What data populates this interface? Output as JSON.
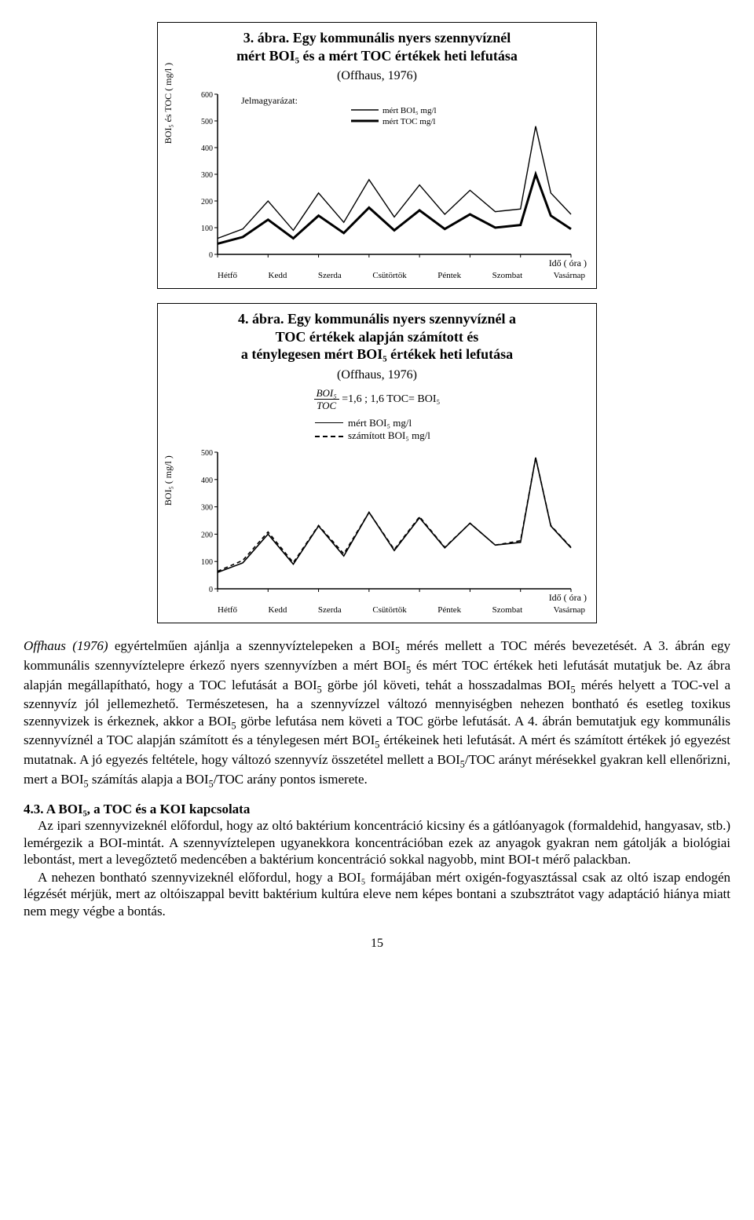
{
  "figure3": {
    "caption_num": "3. ábra.",
    "caption_line1": "Egy kommunális nyers szennyvíznél",
    "caption_line2": "mért BOI₅ és a mért TOC értékek heti lefutása",
    "caption_sub": "(Offhaus, 1976)",
    "legend_title": "Jelmagyarázat:",
    "legend_a": "mért BOI₅ mg/l",
    "legend_b": "mért TOC mg/l",
    "ylabel": "BOI₅ és TOC ( mg/l )",
    "xright": "Idő ( óra )",
    "ylim": [
      0,
      600
    ],
    "yticks": [
      0,
      100,
      200,
      300,
      400,
      500,
      600
    ],
    "xlabels": [
      "Hétfő",
      "Kedd",
      "Szerda",
      "Csütörtök",
      "Péntek",
      "Szombat",
      "Vasárnap"
    ],
    "plot_bg": "#ffffff",
    "axis_color": "#000000",
    "series_boi": {
      "color": "#000000",
      "width": 1.4,
      "x": [
        0,
        0.5,
        1,
        1.5,
        2,
        2.5,
        3,
        3.5,
        4,
        4.5,
        5,
        5.5,
        6,
        6.3,
        6.6,
        7
      ],
      "y": [
        60,
        95,
        200,
        90,
        230,
        120,
        280,
        140,
        260,
        150,
        240,
        160,
        170,
        480,
        230,
        150
      ]
    },
    "series_toc": {
      "color": "#000000",
      "width": 3,
      "x": [
        0,
        0.5,
        1,
        1.5,
        2,
        2.5,
        3,
        3.5,
        4,
        4.5,
        5,
        5.5,
        6,
        6.3,
        6.6,
        7
      ],
      "y": [
        40,
        65,
        130,
        60,
        145,
        80,
        175,
        90,
        165,
        95,
        150,
        100,
        110,
        300,
        145,
        95
      ]
    }
  },
  "figure4": {
    "caption_num": "4. ábra.",
    "caption_line1": "Egy kommunális nyers szennyvíznél a",
    "caption_line2": "TOC értékek alapján számított és",
    "caption_line3": "a ténylegesen mért BOI₅ értékek heti lefutása",
    "caption_sub": "(Offhaus, 1976)",
    "eq_lhs_n": "BOI₅",
    "eq_lhs_d": "TOC",
    "eq_rhs": "=1,6 ;  1,6 TOC= BOI₅",
    "legend_a": "mért BOI₅ mg/l",
    "legend_b": "számított BOI₅ mg/l",
    "ylabel": "BOI₅  ( mg/l )",
    "xright": "Idő ( óra )",
    "ylim": [
      0,
      500
    ],
    "yticks": [
      0,
      100,
      200,
      300,
      400,
      500
    ],
    "xlabels": [
      "Hétfő",
      "Kedd",
      "Szerda",
      "Csütörtök",
      "Péntek",
      "Szombat",
      "Vasárnap"
    ],
    "plot_bg": "#ffffff",
    "axis_color": "#000000",
    "series_meas": {
      "color": "#000000",
      "width": 1.6,
      "dash": "none",
      "x": [
        0,
        0.5,
        1,
        1.5,
        2,
        2.5,
        3,
        3.5,
        4,
        4.5,
        5,
        5.5,
        6,
        6.3,
        6.6,
        7
      ],
      "y": [
        60,
        95,
        200,
        90,
        230,
        120,
        280,
        140,
        260,
        150,
        240,
        160,
        170,
        480,
        230,
        150
      ]
    },
    "series_calc": {
      "color": "#000000",
      "width": 1.6,
      "dash": "5,4",
      "x": [
        0,
        0.5,
        1,
        1.5,
        2,
        2.5,
        3,
        3.5,
        4,
        4.5,
        5,
        5.5,
        6,
        6.3,
        6.6,
        7
      ],
      "y": [
        64,
        104,
        208,
        96,
        232,
        128,
        280,
        144,
        264,
        152,
        240,
        160,
        176,
        480,
        232,
        152
      ]
    }
  },
  "para1": "Offhaus (1976) egyértelműen ajánlja a szennyvíztelepeken a BOI₅ mérés mellett a TOC mérés bevezetését. A 3. ábrán egy kommunális szennyvíztelepre érkező nyers szennyvízben a mért BOI₅ és mért TOC értékek heti lefutását mutatjuk be. Az ábra alapján megállapítható, hogy a TOC lefutását a BOI₅ görbe jól követi, tehát a hosszadalmas BOI₅ mérés helyett a TOC-vel a szennyvíz jól jellemezhető. Természetesen, ha a szennyvízzel változó mennyiségben nehezen bontható és esetleg toxikus szennyvizek is érkeznek, akkor a BOI₅ görbe lefutása nem követi a TOC görbe lefutását. A 4. ábrán bemutatjuk egy kommunális szennyvíznél a TOC alapján számított és a ténylegesen mért BOI₅ értékeinek heti lefutását. A mért és számított értékek jó egyezést mutatnak. A jó egyezés feltétele, hogy változó szennyvíz összetétel mellett a BOI₅/TOC arányt mérésekkel gyakran kell ellenőrizni, mert a BOI₅ számítás alapja a BOI₅/TOC arány pontos ismerete.",
  "heading": "4.3. A BOI₅, a TOC és a KOI kapcsolata",
  "para2": "Az ipari szennyvizeknél előfordul, hogy az oltó baktérium koncentráció kicsiny és a gátlóanyagok (formaldehid, hangyasav, stb.) lemérgezik a BOI-mintát. A szennyvíztelepen ugyanekkora koncentrációban ezek az anyagok gyakran nem gátolják a biológiai lebontást, mert a levegőztető medencében a baktérium koncentráció sokkal nagyobb, mint BOI-t mérő palackban.",
  "para3": "A nehezen bontható szennyvizeknél előfordul, hogy a BOI₅ formájában mért oxigén-fogyasztással csak az oltó iszap endogén légzését mérjük, mert az oltóiszappal bevitt baktérium kultúra eleve nem képes bontani a szubsztrátot vagy adaptáció hiánya miatt nem megy végbe a bontás.",
  "page_num": "15"
}
